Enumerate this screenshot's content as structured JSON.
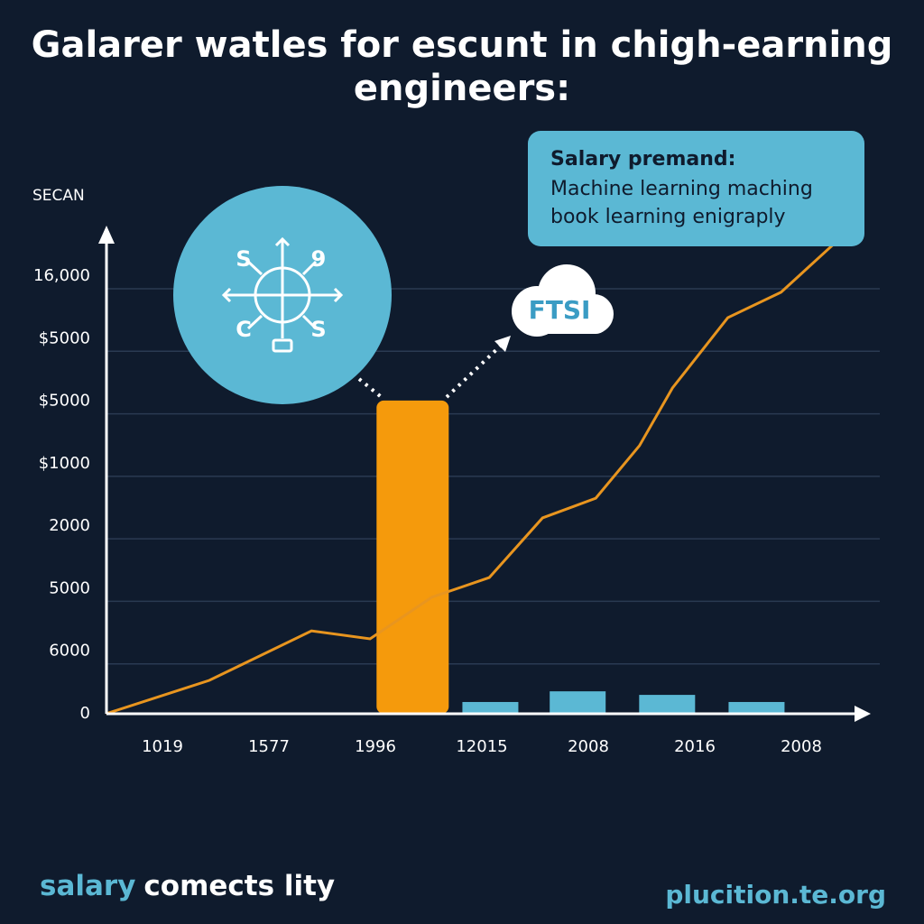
{
  "chart_data": {
    "type": "line",
    "title_lines": [
      "Galarer watles for escunt in chigh-earning",
      "engineers:"
    ],
    "y_axis_title": "SECAN",
    "y_categories": [
      "0",
      "6000",
      "5000",
      "2000",
      "$1000",
      "$5000",
      "$5000",
      "16,000"
    ],
    "categories": [
      "1019",
      "1577",
      "1996",
      "12015",
      "2008",
      "2016",
      "2008"
    ],
    "ylim": [
      0,
      16000
    ],
    "line": {
      "color": "#e8951f",
      "x": [
        -0.53,
        0.44,
        1.4,
        1.95,
        2.53,
        3.07,
        3.57,
        4.07,
        4.48,
        4.79,
        5.31,
        5.81,
        6.31
      ],
      "values": [
        0,
        1220,
        3030,
        2740,
        4260,
        4980,
        7160,
        7880,
        9800,
        11910,
        14480,
        15410,
        17190
      ]
    },
    "bars": {
      "x": [
        2.35,
        3.08,
        3.9,
        4.74,
        5.58
      ],
      "values": [
        11450,
        430,
        820,
        690,
        430
      ],
      "colors": [
        "#f59a0c",
        "#5bb8d4",
        "#5bb8d4",
        "#5bb8d4",
        "#5bb8d4"
      ]
    },
    "icon_labels": [
      "S",
      "9",
      "C",
      "S"
    ],
    "cloud_label": "FTSI",
    "callout": {
      "title": "Salary premand:",
      "lines": [
        "Machine learning maching",
        "book learning enigraply"
      ]
    },
    "footer": {
      "left_accent": "salary",
      "left_rest": "comects lity",
      "right": "plucition.te.org"
    }
  }
}
